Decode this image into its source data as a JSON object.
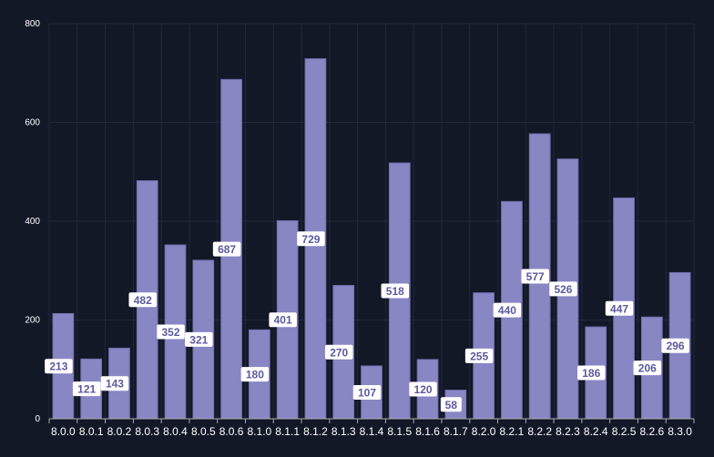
{
  "chart_data": {
    "type": "bar",
    "title": "",
    "xlabel": "",
    "ylabel": "",
    "ylim": [
      0,
      800
    ],
    "yticks": [
      0,
      200,
      400,
      600,
      800
    ],
    "grid": true,
    "categories": [
      "8.0.0",
      "8.0.1",
      "8.0.2",
      "8.0.3",
      "8.0.4",
      "8.0.5",
      "8.0.6",
      "8.1.0",
      "8.1.1",
      "8.1.2",
      "8.1.3",
      "8.1.4",
      "8.1.5",
      "8.1.6",
      "8.1.7",
      "8.2.0",
      "8.2.1",
      "8.2.2",
      "8.2.3",
      "8.2.4",
      "8.2.5",
      "8.2.6",
      "8.3.0"
    ],
    "values": [
      213,
      121,
      143,
      482,
      352,
      321,
      687,
      180,
      401,
      729,
      270,
      107,
      518,
      120,
      58,
      255,
      440,
      577,
      526,
      186,
      447,
      206,
      296
    ],
    "colors": {
      "background": "#131827",
      "bar": "#8986c4",
      "bar_stroke": "#6f6cab",
      "label_bg": "#ffffff",
      "label_text": "#5b5a9e",
      "grid": "#222838",
      "axis": "#aaaaaa"
    }
  }
}
